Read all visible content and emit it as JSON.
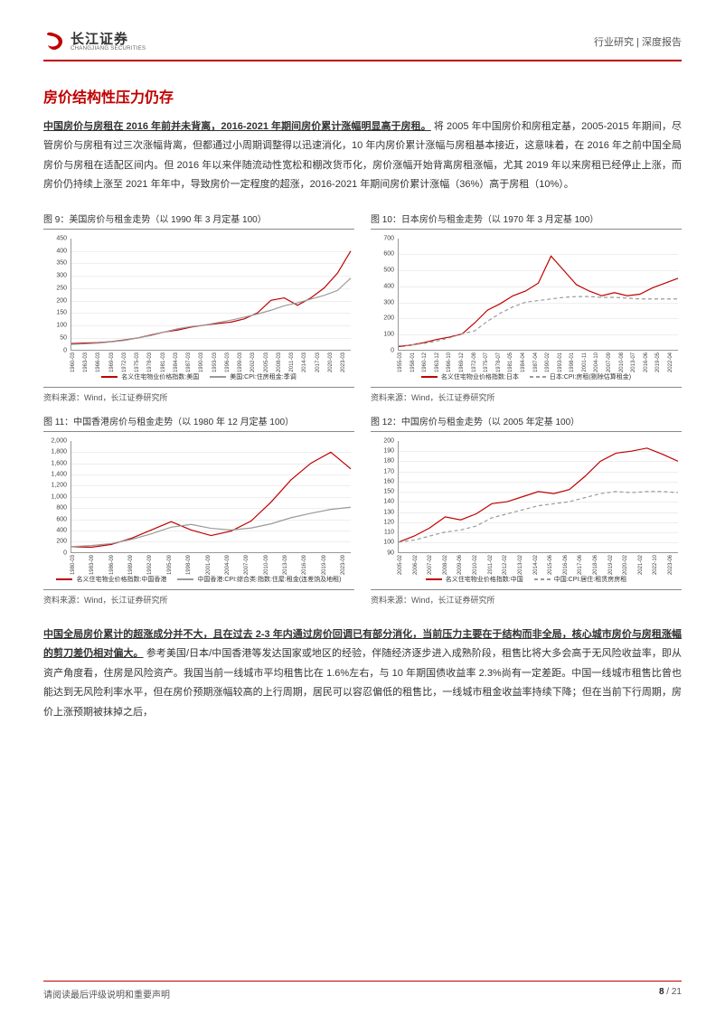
{
  "header": {
    "logo_cn": "长江证券",
    "logo_en": "CHANGJIANG SECURITIES",
    "right": "行业研究 | 深度报告"
  },
  "section_title": "房价结构性压力仍存",
  "para1": {
    "lead": "中国房价与房租在 2016 年前并未背离，2016-2021 年期间房价累计涨幅明显高于房租。",
    "body": "将 2005 年中国房价和房租定基，2005-2015 年期间，尽管房价与房租有过三次涨幅背离，但都通过小周期调整得以迅速消化，10 年内房价累计涨幅与房租基本接近，这意味着，在 2016 年之前中国全局房价与房租在适配区间内。但 2016 年以来伴随流动性宽松和棚改货币化，房价涨幅开始背离房租涨幅，尤其 2019 年以来房租已经停止上涨，而房价仍持续上涨至 2021 年年中，导致房价一定程度的超涨，2016-2021 年期间房价累计涨幅（36%）高于房租（10%）。"
  },
  "para2": {
    "lead": "中国全局房价累计的超涨成分并不大，且在过去 2-3 年内通过房价回调已有部分消化，当前压力主要在于结构而非全局，核心城市房价与房租涨幅的剪刀差仍相对偏大。",
    "body": "参考美国/日本/中国香港等发达国家或地区的经验，伴随经济逐步进入成熟阶段，租售比将大多会高于无风险收益率，即从资产角度看，住房是风险资产。我国当前一线城市平均租售比在 1.6%左右，与 10 年期国债收益率 2.3%尚有一定差距。中国一线城市租售比曾也能达到无风险利率水平，但在房价预期涨幅较高的上行周期，居民可以容忍偏低的租售比，一线城市租金收益率持续下降；但在当前下行周期，房价上涨预期被抹掉之后，"
  },
  "charts": [
    {
      "title": "图 9：美国房价与租金走势（以 1990 年 3 月定基 100）",
      "source": "资料来源：Wind，长江证券研究所",
      "ylim": [
        0,
        450
      ],
      "ytick_step": 50,
      "xlabels": [
        "1960-03",
        "1963-03",
        "1966-03",
        "1969-03",
        "1972-03",
        "1975-03",
        "1978-03",
        "1981-03",
        "1984-03",
        "1987-03",
        "1990-03",
        "1993-03",
        "1996-03",
        "1999-03",
        "2002-03",
        "2005-03",
        "2008-03",
        "2011-03",
        "2014-03",
        "2017-03",
        "2020-03",
        "2023-03"
      ],
      "series": [
        {
          "name": "名义住宅物业价格指数:美国",
          "color": "#c00000",
          "dash": "",
          "values": [
            25,
            27,
            29,
            33,
            40,
            48,
            60,
            72,
            80,
            92,
            100,
            106,
            112,
            125,
            150,
            200,
            210,
            180,
            210,
            250,
            310,
            400
          ]
        },
        {
          "name": "美国:CPI:住房租金:季调",
          "color": "#9a9a9a",
          "dash": "",
          "values": [
            22,
            24,
            27,
            32,
            38,
            48,
            58,
            72,
            85,
            94,
            100,
            110,
            120,
            132,
            145,
            160,
            178,
            190,
            205,
            220,
            240,
            290
          ]
        }
      ]
    },
    {
      "title": "图 10：日本房价与租金走势（以 1970 年 3 月定基 100）",
      "source": "资料来源：Wind，长江证券研究所",
      "ylim": [
        0,
        700
      ],
      "ytick_step": 100,
      "xlabels": [
        "1955-03",
        "1958-01",
        "1960-12",
        "1963-12",
        "1966-10",
        "1969-12",
        "1972-08",
        "1975-07",
        "1978-07",
        "1981-05",
        "1984-04",
        "1987-04",
        "1990-02",
        "1993-01",
        "1998-01",
        "2001-11",
        "2004-10",
        "2007-09",
        "2010-08",
        "2013-07",
        "2016-06",
        "2019-05",
        "2022-04"
      ],
      "series": [
        {
          "name": "名义住宅物业价格指数:日本",
          "color": "#c00000",
          "dash": "",
          "values": [
            20,
            30,
            45,
            65,
            80,
            100,
            170,
            250,
            290,
            340,
            370,
            420,
            590,
            500,
            410,
            370,
            340,
            360,
            340,
            350,
            390,
            420,
            450
          ]
        },
        {
          "name": "日本:CPI:房租(剔除估算租金)",
          "color": "#9a9a9a",
          "dash": "4 3",
          "values": [
            25,
            30,
            40,
            55,
            75,
            100,
            120,
            180,
            230,
            270,
            300,
            310,
            320,
            330,
            335,
            335,
            330,
            330,
            325,
            320,
            320,
            320,
            320
          ]
        }
      ]
    },
    {
      "title": "图 11：中国香港房价与租金走势（以 1980 年 12 月定基 100）",
      "source": "资料来源：Wind，长江证券研究所",
      "ylim": [
        0,
        2000
      ],
      "ytick_step": 200,
      "xlabels": [
        "1980-03",
        "1983-09",
        "1986-09",
        "1989-09",
        "1992-09",
        "1995-09",
        "1998-09",
        "2001-09",
        "2004-09",
        "2007-09",
        "2010-09",
        "2013-09",
        "2016-09",
        "2019-09",
        "2023-09"
      ],
      "series": [
        {
          "name": "名义住宅物业价格指数:中国香港",
          "color": "#c00000",
          "dash": "",
          "values": [
            100,
            90,
            140,
            250,
            400,
            550,
            400,
            300,
            380,
            560,
            900,
            1300,
            1600,
            1800,
            1500
          ]
        },
        {
          "name": "中国香港:CPI:综合类:指数:住屋:租金(连差饷及地租)",
          "color": "#9a9a9a",
          "dash": "",
          "values": [
            100,
            120,
            155,
            230,
            330,
            450,
            500,
            430,
            400,
            435,
            510,
            620,
            700,
            770,
            810
          ]
        }
      ]
    },
    {
      "title": "图 12：中国房价与租金走势（以 2005 年定基 100）",
      "source": "资料来源：Wind，长江证券研究所",
      "ylim": [
        90,
        200
      ],
      "ytick_step": 10,
      "xlabels": [
        "2005-02",
        "2006-02",
        "2007-02",
        "2008-02",
        "2009-06",
        "2010-02",
        "2011-02",
        "2012-02",
        "2013-02",
        "2014-02",
        "2015-06",
        "2016-06",
        "2017-06",
        "2018-06",
        "2019-02",
        "2020-02",
        "2021-02",
        "2022-10",
        "2023-06"
      ],
      "series": [
        {
          "name": "名义住宅物业价格指数:中国",
          "color": "#c00000",
          "dash": "",
          "values": [
            100,
            106,
            114,
            125,
            122,
            128,
            138,
            140,
            145,
            150,
            148,
            152,
            165,
            180,
            188,
            190,
            193,
            187,
            180
          ]
        },
        {
          "name": "中国:CPI:居住:租赁房房租",
          "color": "#9a9a9a",
          "dash": "4 3",
          "values": [
            100,
            102,
            106,
            110,
            112,
            116,
            124,
            128,
            132,
            136,
            138,
            140,
            144,
            148,
            150,
            149,
            150,
            150,
            149
          ]
        }
      ]
    }
  ],
  "footer": {
    "left": "请阅读最后评级说明和重要声明",
    "page_cur": "8",
    "page_total": "21"
  }
}
